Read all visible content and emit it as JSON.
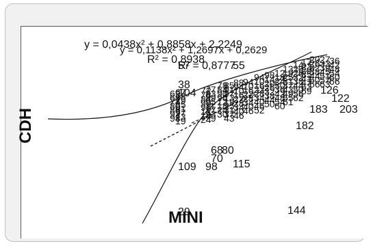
{
  "chart_data": {
    "type": "scatter",
    "xlabel": "MINI",
    "ylabel": "CDH",
    "trendlines": [
      {
        "kind": "polynomial",
        "equation": "y = 0,0438x² + 0,8858x + 2,2249",
        "r2_label": "R² = 0,8938"
      },
      {
        "kind": "polynomial",
        "equation": "y = 0,1138x² + 1,2697x + 0,2629",
        "r2_label": "R² = 0,8777"
      },
      {
        "kind": "linear-dashed"
      }
    ],
    "point_labels": [
      {
        "text": "57",
        "x": 1.0,
        "y": 56.0
      },
      {
        "text": "38",
        "x": 1.0,
        "y": 49.0
      },
      {
        "text": "104",
        "x": 1.0,
        "y": 46.0
      },
      {
        "text": "55",
        "x": 3.0,
        "y": 56.0
      },
      {
        "text": "109",
        "x": 1.0,
        "y": 19.0
      },
      {
        "text": "98",
        "x": 2.0,
        "y": 19.0
      },
      {
        "text": "115",
        "x": 3.0,
        "y": 20.0
      },
      {
        "text": "70",
        "x": 2.2,
        "y": 22.0
      },
      {
        "text": "68",
        "x": 2.2,
        "y": 25.0
      },
      {
        "text": "80",
        "x": 2.6,
        "y": 25.0
      },
      {
        "text": "182",
        "x": 5.3,
        "y": 34.0
      },
      {
        "text": "183",
        "x": 5.8,
        "y": 40.0
      },
      {
        "text": "126",
        "x": 6.2,
        "y": 47.0
      },
      {
        "text": "122",
        "x": 6.6,
        "y": 44.0
      },
      {
        "text": "203",
        "x": 6.9,
        "y": 40.0
      },
      {
        "text": "144",
        "x": 5.0,
        "y": 3.0
      },
      {
        "text": "29",
        "x": 1.0,
        "y": 2.5
      }
    ]
  }
}
